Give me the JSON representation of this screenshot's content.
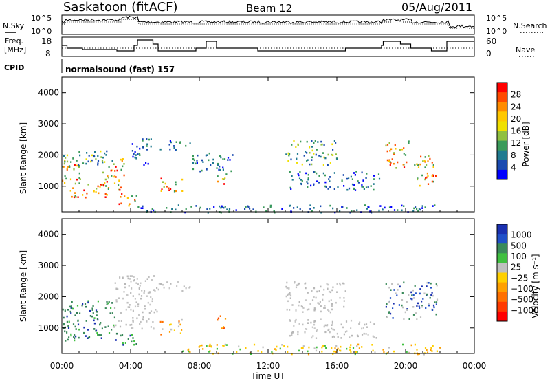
{
  "header": {
    "title": "Saskatoon (fitACF)",
    "beam": "Beam 12",
    "date": "05/Aug/2011"
  },
  "top_panels": {
    "noise": {
      "left_label": "N.Sky",
      "right_label": "N.Search",
      "left_ticks": [
        "10^5",
        "10^0"
      ],
      "right_ticks": [
        "10^5",
        "10^0"
      ]
    },
    "freq": {
      "left_label_line1": "Freq.",
      "left_label_line2": "[MHz]",
      "right_label": "Nave",
      "left_ticks": [
        "18",
        "8"
      ],
      "right_ticks": [
        "60",
        "0"
      ]
    },
    "cpid": {
      "label": "CPID",
      "text": "normalsound (fast) 157"
    }
  },
  "chart_data": [
    {
      "type": "heatmap",
      "name": "power",
      "ylabel": "Slant Range [km]",
      "ylim": [
        180,
        4500
      ],
      "yticks": [
        "1000",
        "2000",
        "3000",
        "4000"
      ],
      "xlim": [
        0,
        24
      ],
      "xticks": [
        "00:00",
        "04:00",
        "08:00",
        "12:00",
        "16:00",
        "20:00",
        "00:00"
      ],
      "colorbar": {
        "label": "Power [dB]",
        "labels": [
          "28",
          "24",
          "20",
          "16",
          "12",
          "8",
          "4"
        ],
        "colors": [
          "#ff0000",
          "#ff4a00",
          "#ff8c00",
          "#ffc800",
          "#f0e000",
          "#90c040",
          "#3a9a5a",
          "#207a90",
          "#1a4ab0",
          "#0000ff"
        ]
      },
      "echo_regions": [
        {
          "t0": 0.0,
          "t1": 1.2,
          "r0": 1100,
          "r1": 1900,
          "level": "high"
        },
        {
          "t0": 0.4,
          "t1": 2.6,
          "r0": 650,
          "r1": 1150,
          "level": "high"
        },
        {
          "t0": 0.0,
          "t1": 3.0,
          "r0": 1700,
          "r1": 2200,
          "level": "mid"
        },
        {
          "t0": 2.3,
          "t1": 3.6,
          "r0": 900,
          "r1": 1900,
          "level": "high"
        },
        {
          "t0": 3.3,
          "t1": 4.4,
          "r0": 400,
          "r1": 850,
          "level": "high"
        },
        {
          "t0": 4.0,
          "t1": 5.2,
          "r0": 1700,
          "r1": 2600,
          "level": "low"
        },
        {
          "t0": 5.7,
          "t1": 7.0,
          "r0": 800,
          "r1": 1300,
          "level": "high"
        },
        {
          "t0": 5.5,
          "t1": 7.5,
          "r0": 2200,
          "r1": 2500,
          "level": "low"
        },
        {
          "t0": 9.0,
          "t1": 9.6,
          "r0": 1000,
          "r1": 1500,
          "level": "high"
        },
        {
          "t0": 7.5,
          "t1": 10.0,
          "r0": 1500,
          "r1": 2100,
          "level": "low"
        },
        {
          "t0": 13.0,
          "t1": 16.0,
          "r0": 1700,
          "r1": 2500,
          "level": "mid"
        },
        {
          "t0": 13.2,
          "t1": 18.5,
          "r0": 900,
          "r1": 1500,
          "level": "low"
        },
        {
          "t0": 18.8,
          "t1": 20.2,
          "r0": 1600,
          "r1": 2500,
          "level": "high"
        },
        {
          "t0": 20.4,
          "t1": 21.8,
          "r0": 1000,
          "r1": 2000,
          "level": "high"
        },
        {
          "t0": 4.0,
          "t1": 22.0,
          "r0": 180,
          "r1": 420,
          "level": "low"
        }
      ]
    },
    {
      "type": "heatmap",
      "name": "velocity",
      "ylabel": "Slant Range [km]",
      "ylim": [
        180,
        4500
      ],
      "yticks": [
        "1000",
        "2000",
        "3000",
        "4000"
      ],
      "xlim": [
        0,
        24
      ],
      "xticks": [
        "00:00",
        "04:00",
        "08:00",
        "12:00",
        "16:00",
        "20:00",
        "00:00"
      ],
      "xlabel": "Time UT",
      "colorbar": {
        "label": "Velocity [m s⁻¹]",
        "labels": [
          "1000",
          "500",
          "100",
          "25",
          "−25",
          "−100",
          "−500",
          "−1000"
        ],
        "colors": [
          "#1a30b0",
          "#2050c8",
          "#3a8a5a",
          "#40c040",
          "#c0c0c0",
          "#ffd000",
          "#ffa000",
          "#ff7000",
          "#ff3a00",
          "#ff0000"
        ]
      },
      "echo_regions": [
        {
          "t0": 0.0,
          "t1": 3.2,
          "r0": 600,
          "r1": 1900,
          "level": "green"
        },
        {
          "t0": 3.3,
          "t1": 4.3,
          "r0": 400,
          "r1": 900,
          "level": "green"
        },
        {
          "t0": 3.0,
          "t1": 5.5,
          "r0": 1000,
          "r1": 2700,
          "level": "grey"
        },
        {
          "t0": 5.7,
          "t1": 7.0,
          "r0": 800,
          "r1": 1300,
          "level": "orange"
        },
        {
          "t0": 9.0,
          "t1": 9.6,
          "r0": 1000,
          "r1": 1500,
          "level": "red"
        },
        {
          "t0": 5.5,
          "t1": 7.5,
          "r0": 2200,
          "r1": 2500,
          "level": "grey"
        },
        {
          "t0": 13.0,
          "t1": 16.5,
          "r0": 1500,
          "r1": 2500,
          "level": "grey"
        },
        {
          "t0": 13.2,
          "t1": 18.5,
          "r0": 700,
          "r1": 1300,
          "level": "grey"
        },
        {
          "t0": 18.8,
          "t1": 21.8,
          "r0": 1300,
          "r1": 2500,
          "level": "blue"
        },
        {
          "t0": 7.0,
          "t1": 22.0,
          "r0": 180,
          "r1": 500,
          "level": "yellow"
        }
      ]
    }
  ]
}
